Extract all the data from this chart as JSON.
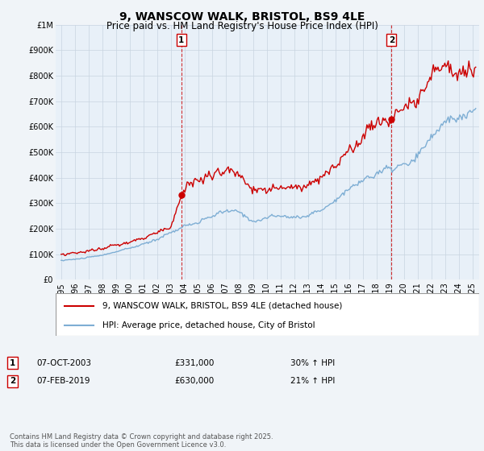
{
  "title": "9, WANSCOW WALK, BRISTOL, BS9 4LE",
  "subtitle": "Price paid vs. HM Land Registry's House Price Index (HPI)",
  "ylim": [
    0,
    1000000
  ],
  "yticks": [
    0,
    100000,
    200000,
    300000,
    400000,
    500000,
    600000,
    700000,
    800000,
    900000,
    1000000
  ],
  "ytick_labels": [
    "£0",
    "£100K",
    "£200K",
    "£300K",
    "£400K",
    "£500K",
    "£600K",
    "£700K",
    "£800K",
    "£900K",
    "£1M"
  ],
  "xlim_start": 1994.6,
  "xlim_end": 2025.5,
  "xtick_years": [
    1995,
    1996,
    1997,
    1998,
    1999,
    2000,
    2001,
    2002,
    2003,
    2004,
    2005,
    2006,
    2007,
    2008,
    2009,
    2010,
    2011,
    2012,
    2013,
    2014,
    2015,
    2016,
    2017,
    2018,
    2019,
    2020,
    2021,
    2022,
    2023,
    2024,
    2025
  ],
  "property_color": "#cc0000",
  "hpi_color": "#7eaed4",
  "plot_bg_color": "#e8f0f8",
  "grid_color": "#c8d4e0",
  "sale1_x": 2003.77,
  "sale1_y": 331000,
  "sale1_label": "1",
  "sale1_date": "07-OCT-2003",
  "sale1_price": "£331,000",
  "sale1_hpi": "30% ↑ HPI",
  "sale2_x": 2019.1,
  "sale2_y": 630000,
  "sale2_label": "2",
  "sale2_date": "07-FEB-2019",
  "sale2_price": "£630,000",
  "sale2_hpi": "21% ↑ HPI",
  "legend_property": "9, WANSCOW WALK, BRISTOL, BS9 4LE (detached house)",
  "legend_hpi": "HPI: Average price, detached house, City of Bristol",
  "footnote": "Contains HM Land Registry data © Crown copyright and database right 2025.\nThis data is licensed under the Open Government Licence v3.0.",
  "background_color": "#f0f4f8",
  "title_fontsize": 10,
  "subtitle_fontsize": 8.5,
  "tick_fontsize": 7,
  "legend_fontsize": 7.5,
  "footnote_fontsize": 6
}
